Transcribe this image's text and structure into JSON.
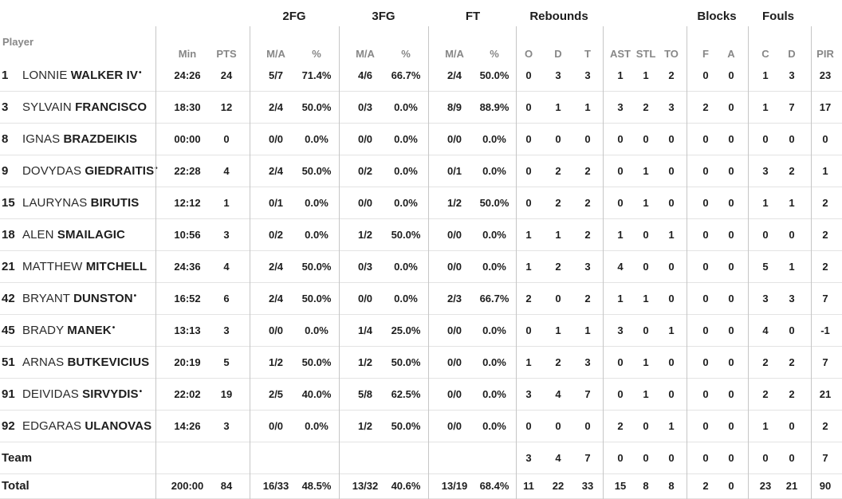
{
  "colors": {
    "ink": "#1d1d1d",
    "grey": "#878787",
    "hline": "#e3e3e3",
    "vline": "#c6c6c6"
  },
  "table": {
    "player_col_label": "Player",
    "starter_mark": "•",
    "groups": [
      {
        "key": "2fg",
        "label": "2FG"
      },
      {
        "key": "3fg",
        "label": "3FG"
      },
      {
        "key": "ft",
        "label": "FT"
      },
      {
        "key": "rebounds",
        "label": "Rebounds"
      },
      {
        "key": "blocks",
        "label": "Blocks"
      },
      {
        "key": "fouls",
        "label": "Fouls"
      }
    ],
    "columns": [
      {
        "key": "min",
        "label": "Min"
      },
      {
        "key": "pts",
        "label": "PTS"
      },
      {
        "key": "2fg-ma",
        "label": "M/A"
      },
      {
        "key": "2fg-pct",
        "label": "%"
      },
      {
        "key": "3fg-ma",
        "label": "M/A"
      },
      {
        "key": "3fg-pct",
        "label": "%"
      },
      {
        "key": "ft-ma",
        "label": "M/A"
      },
      {
        "key": "ft-pct",
        "label": "%"
      },
      {
        "key": "reb-o",
        "label": "O"
      },
      {
        "key": "reb-d",
        "label": "D"
      },
      {
        "key": "reb-t",
        "label": "T"
      },
      {
        "key": "ast",
        "label": "AST"
      },
      {
        "key": "stl",
        "label": "STL"
      },
      {
        "key": "to",
        "label": "TO"
      },
      {
        "key": "blk-f",
        "label": "F"
      },
      {
        "key": "blk-a",
        "label": "A"
      },
      {
        "key": "foul-c",
        "label": "C"
      },
      {
        "key": "foul-d",
        "label": "D"
      },
      {
        "key": "pir",
        "label": "PIR"
      }
    ],
    "players": [
      {
        "num": "1",
        "first": "LONNIE",
        "last": "WALKER IV",
        "starter": true,
        "stats": [
          "24:26",
          "24",
          "5/7",
          "71.4%",
          "4/6",
          "66.7%",
          "2/4",
          "50.0%",
          "0",
          "3",
          "3",
          "1",
          "1",
          "2",
          "0",
          "0",
          "1",
          "3",
          "23"
        ]
      },
      {
        "num": "3",
        "first": "SYLVAIN",
        "last": "FRANCISCO",
        "starter": false,
        "stats": [
          "18:30",
          "12",
          "2/4",
          "50.0%",
          "0/3",
          "0.0%",
          "8/9",
          "88.9%",
          "0",
          "1",
          "1",
          "3",
          "2",
          "3",
          "2",
          "0",
          "1",
          "7",
          "17"
        ]
      },
      {
        "num": "8",
        "first": "IGNAS",
        "last": "BRAZDEIKIS",
        "starter": false,
        "stats": [
          "00:00",
          "0",
          "0/0",
          "0.0%",
          "0/0",
          "0.0%",
          "0/0",
          "0.0%",
          "0",
          "0",
          "0",
          "0",
          "0",
          "0",
          "0",
          "0",
          "0",
          "0",
          "0"
        ]
      },
      {
        "num": "9",
        "first": "DOVYDAS",
        "last": "GIEDRAITIS",
        "starter": true,
        "stats": [
          "22:28",
          "4",
          "2/4",
          "50.0%",
          "0/2",
          "0.0%",
          "0/1",
          "0.0%",
          "0",
          "2",
          "2",
          "0",
          "1",
          "0",
          "0",
          "0",
          "3",
          "2",
          "1"
        ]
      },
      {
        "num": "15",
        "first": "LAURYNAS",
        "last": "BIRUTIS",
        "starter": false,
        "stats": [
          "12:12",
          "1",
          "0/1",
          "0.0%",
          "0/0",
          "0.0%",
          "1/2",
          "50.0%",
          "0",
          "2",
          "2",
          "0",
          "1",
          "0",
          "0",
          "0",
          "1",
          "1",
          "2"
        ]
      },
      {
        "num": "18",
        "first": "ALEN",
        "last": "SMAILAGIC",
        "starter": false,
        "stats": [
          "10:56",
          "3",
          "0/2",
          "0.0%",
          "1/2",
          "50.0%",
          "0/0",
          "0.0%",
          "1",
          "1",
          "2",
          "1",
          "0",
          "1",
          "0",
          "0",
          "0",
          "0",
          "2"
        ]
      },
      {
        "num": "21",
        "first": "MATTHEW",
        "last": "MITCHELL",
        "starter": false,
        "stats": [
          "24:36",
          "4",
          "2/4",
          "50.0%",
          "0/3",
          "0.0%",
          "0/0",
          "0.0%",
          "1",
          "2",
          "3",
          "4",
          "0",
          "0",
          "0",
          "0",
          "5",
          "1",
          "2"
        ]
      },
      {
        "num": "42",
        "first": "BRYANT",
        "last": "DUNSTON",
        "starter": true,
        "stats": [
          "16:52",
          "6",
          "2/4",
          "50.0%",
          "0/0",
          "0.0%",
          "2/3",
          "66.7%",
          "2",
          "0",
          "2",
          "1",
          "1",
          "0",
          "0",
          "0",
          "3",
          "3",
          "7"
        ]
      },
      {
        "num": "45",
        "first": "BRADY",
        "last": "MANEK",
        "starter": true,
        "stats": [
          "13:13",
          "3",
          "0/0",
          "0.0%",
          "1/4",
          "25.0%",
          "0/0",
          "0.0%",
          "0",
          "1",
          "1",
          "3",
          "0",
          "1",
          "0",
          "0",
          "4",
          "0",
          "-1"
        ]
      },
      {
        "num": "51",
        "first": "ARNAS",
        "last": "BUTKEVICIUS",
        "starter": false,
        "stats": [
          "20:19",
          "5",
          "1/2",
          "50.0%",
          "1/2",
          "50.0%",
          "0/0",
          "0.0%",
          "1",
          "2",
          "3",
          "0",
          "1",
          "0",
          "0",
          "0",
          "2",
          "2",
          "7"
        ]
      },
      {
        "num": "91",
        "first": "DEIVIDAS",
        "last": "SIRVYDIS",
        "starter": true,
        "stats": [
          "22:02",
          "19",
          "2/5",
          "40.0%",
          "5/8",
          "62.5%",
          "0/0",
          "0.0%",
          "3",
          "4",
          "7",
          "0",
          "1",
          "0",
          "0",
          "0",
          "2",
          "2",
          "21"
        ]
      },
      {
        "num": "92",
        "first": "EDGARAS",
        "last": "ULANOVAS",
        "starter": false,
        "stats": [
          "14:26",
          "3",
          "0/0",
          "0.0%",
          "1/2",
          "50.0%",
          "0/0",
          "0.0%",
          "0",
          "0",
          "0",
          "2",
          "0",
          "1",
          "0",
          "0",
          "1",
          "0",
          "2"
        ]
      }
    ],
    "team_row": {
      "label": "Team",
      "stats": [
        "",
        "",
        "",
        "",
        "",
        "",
        "",
        "",
        "3",
        "4",
        "7",
        "0",
        "0",
        "0",
        "0",
        "0",
        "0",
        "0",
        "7"
      ]
    },
    "total_row": {
      "label": "Total",
      "stats": [
        "200:00",
        "84",
        "16/33",
        "48.5%",
        "13/32",
        "40.6%",
        "13/19",
        "68.4%",
        "11",
        "22",
        "33",
        "15",
        "8",
        "8",
        "2",
        "0",
        "23",
        "21",
        "90"
      ]
    }
  }
}
